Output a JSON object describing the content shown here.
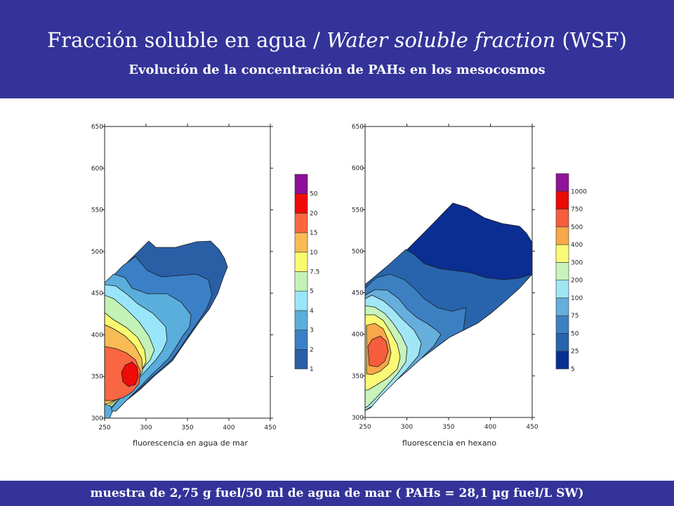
{
  "header": {
    "title_part1": "Fracción soluble en agua / ",
    "title_italic": "Water soluble fraction",
    "title_part2": " (WSF)",
    "subtitle": "Evolución de la concentración de PAHs en los mesocosmos"
  },
  "footer": {
    "text": "muestra de  2,75 g fuel/50 ml de agua de mar ( PAHs = 28,1 µg fuel/L SW)"
  },
  "colors": {
    "band": "#333399",
    "contour_scale": [
      "#2a5fa6",
      "#3b80c6",
      "#5aaedc",
      "#99e6fa",
      "#c3f2b7",
      "#fafa70",
      "#f8bb55",
      "#f96642",
      "#ef0b08",
      "#8c1098"
    ],
    "hexano_scale": [
      "#0a2e91",
      "#2864ad",
      "#3c80c2",
      "#66aedc",
      "#a1e6f5",
      "#c8f3bb",
      "#fafa76",
      "#f7a84a",
      "#f65d3c",
      "#ea0a07",
      "#901398"
    ]
  },
  "chart_data": [
    {
      "type": "heatmap",
      "subtype": "contour",
      "xlabel": "fluorescencia en agua de mar",
      "ylabel": "",
      "xlim": [
        250,
        450
      ],
      "ylim": [
        300,
        650
      ],
      "xticks": [
        250,
        300,
        350,
        400,
        450
      ],
      "yticks": [
        300,
        350,
        400,
        450,
        500,
        550,
        600,
        650
      ],
      "legend_levels": [
        "1",
        "2",
        "3",
        "4",
        "5",
        "7.5",
        "10",
        "15",
        "20",
        "50"
      ],
      "maximum": {
        "x": 280,
        "y": 355
      },
      "grid": false,
      "legend": "right"
    },
    {
      "type": "heatmap",
      "subtype": "contour",
      "xlabel": "fluorescencia en hexano",
      "ylabel": "",
      "xlim": [
        250,
        450
      ],
      "ylim": [
        300,
        650
      ],
      "xticks": [
        250,
        300,
        350,
        400,
        450
      ],
      "yticks": [
        300,
        350,
        400,
        450,
        500,
        550,
        600,
        650
      ],
      "legend_levels": [
        "5",
        "25",
        "50",
        "75",
        "100",
        "200",
        "300",
        "400",
        "500",
        "750",
        "1000"
      ],
      "maximum": {
        "x": 265,
        "y": 380
      },
      "grid": false,
      "legend": "right"
    }
  ]
}
